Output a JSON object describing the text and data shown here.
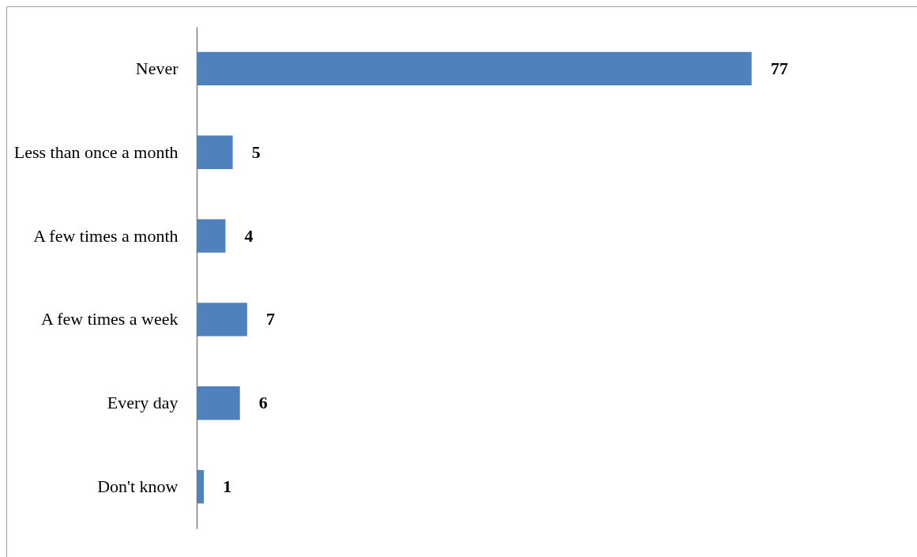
{
  "chart_data": {
    "type": "bar",
    "orientation": "horizontal",
    "categories": [
      "Never",
      "Less than once a month",
      "A few times a month",
      "A few times a week",
      "Every day",
      "Don't know"
    ],
    "values": [
      77,
      5,
      4,
      7,
      6,
      1
    ],
    "color": "#4f81bd",
    "data_labels": true
  }
}
